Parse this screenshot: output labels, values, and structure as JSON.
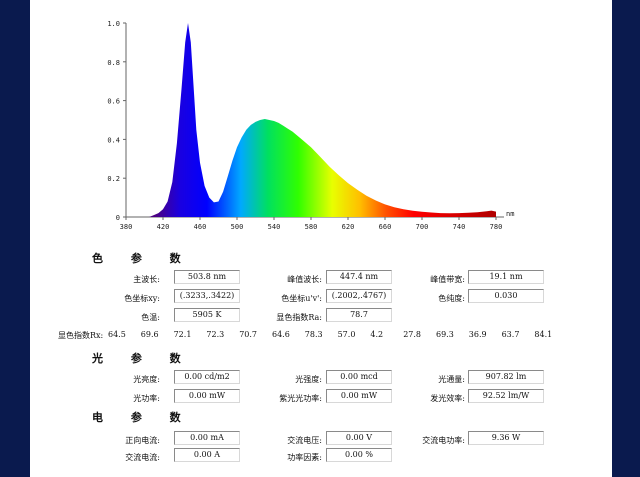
{
  "chart_data": {
    "type": "area",
    "x_ticks": [
      "380",
      "420",
      "460",
      "500",
      "540",
      "580",
      "620",
      "660",
      "700",
      "740",
      "780"
    ],
    "y_ticks": [
      "0",
      "0.2",
      "0.4",
      "0.6",
      "0.8",
      "1.0"
    ],
    "x_unit": "nm",
    "xlim": [
      380,
      780
    ],
    "ylim": [
      0,
      1.0
    ],
    "grid": false,
    "points": [
      [
        405,
        0.0
      ],
      [
        410,
        0.01
      ],
      [
        415,
        0.02
      ],
      [
        420,
        0.04
      ],
      [
        425,
        0.08
      ],
      [
        430,
        0.18
      ],
      [
        435,
        0.38
      ],
      [
        440,
        0.66
      ],
      [
        444,
        0.9
      ],
      [
        447,
        1.0
      ],
      [
        450,
        0.9
      ],
      [
        453,
        0.68
      ],
      [
        456,
        0.45
      ],
      [
        460,
        0.28
      ],
      [
        465,
        0.16
      ],
      [
        470,
        0.1
      ],
      [
        475,
        0.075
      ],
      [
        480,
        0.08
      ],
      [
        485,
        0.13
      ],
      [
        490,
        0.21
      ],
      [
        495,
        0.29
      ],
      [
        500,
        0.36
      ],
      [
        505,
        0.41
      ],
      [
        510,
        0.45
      ],
      [
        515,
        0.475
      ],
      [
        520,
        0.49
      ],
      [
        525,
        0.5
      ],
      [
        530,
        0.505
      ],
      [
        535,
        0.5
      ],
      [
        540,
        0.495
      ],
      [
        545,
        0.485
      ],
      [
        550,
        0.47
      ],
      [
        555,
        0.455
      ],
      [
        560,
        0.44
      ],
      [
        570,
        0.4
      ],
      [
        580,
        0.36
      ],
      [
        590,
        0.31
      ],
      [
        600,
        0.26
      ],
      [
        610,
        0.215
      ],
      [
        620,
        0.175
      ],
      [
        630,
        0.14
      ],
      [
        640,
        0.11
      ],
      [
        650,
        0.085
      ],
      [
        660,
        0.065
      ],
      [
        670,
        0.05
      ],
      [
        680,
        0.04
      ],
      [
        690,
        0.032
      ],
      [
        700,
        0.027
      ],
      [
        710,
        0.023
      ],
      [
        720,
        0.02
      ],
      [
        730,
        0.019
      ],
      [
        740,
        0.02
      ],
      [
        750,
        0.022
      ],
      [
        760,
        0.024
      ],
      [
        770,
        0.03
      ],
      [
        775,
        0.033
      ],
      [
        780,
        0.028
      ]
    ]
  },
  "color_section": {
    "title": "色 参 数",
    "dominant_wavelength_label": "主波长:",
    "dominant_wavelength": "503.8 nm",
    "peak_wavelength_label": "峰值波长:",
    "peak_wavelength": "447.4 nm",
    "peak_bandwidth_label": "峰值带宽:",
    "peak_bandwidth": "19.1 nm",
    "chromaticity_xy_label": "色坐标xy:",
    "chromaticity_xy": "(.3233,.3422)",
    "chromaticity_uv_label": "色坐标u'v':",
    "chromaticity_uv": "(.2002,.4767)",
    "purity_label": "色纯度:",
    "purity": "0.030",
    "cct_label": "色温:",
    "cct": "5905 K",
    "cri_label": "显色指数Ra:",
    "cri": "78.7",
    "rx_label": "显色指数Rx:",
    "rx_values": [
      "64.5",
      "69.6",
      "72.1",
      "72.3",
      "70.7",
      "64.6",
      "78.3",
      "57.0",
      "4.2",
      "27.8",
      "69.3",
      "36.9",
      "63.7",
      "84.1"
    ]
  },
  "light_section": {
    "title": "光 参 数",
    "luminance_label": "光亮度:",
    "luminance": "0.00 cd/m2",
    "intensity_label": "光强度:",
    "intensity": "0.00 mcd",
    "flux_label": "光通量:",
    "flux": "907.82 lm",
    "optical_power_label": "光功率:",
    "optical_power": "0.00 mW",
    "uv_power_label": "紫光光功率:",
    "uv_power": "0.00 mW",
    "efficacy_label": "发光效率:",
    "efficacy": "92.52 lm/W"
  },
  "electric_section": {
    "title": "电 参 数",
    "forward_current_label": "正向电流:",
    "forward_current": "0.00 mA",
    "ac_voltage_label": "交流电压:",
    "ac_voltage": "0.00 V",
    "ac_power_label": "交流电功率:",
    "ac_power": "9.36 W",
    "ac_current_label": "交流电流:",
    "ac_current": "0.00 A",
    "power_factor_label": "功率因素:",
    "power_factor": "0.00 %"
  }
}
